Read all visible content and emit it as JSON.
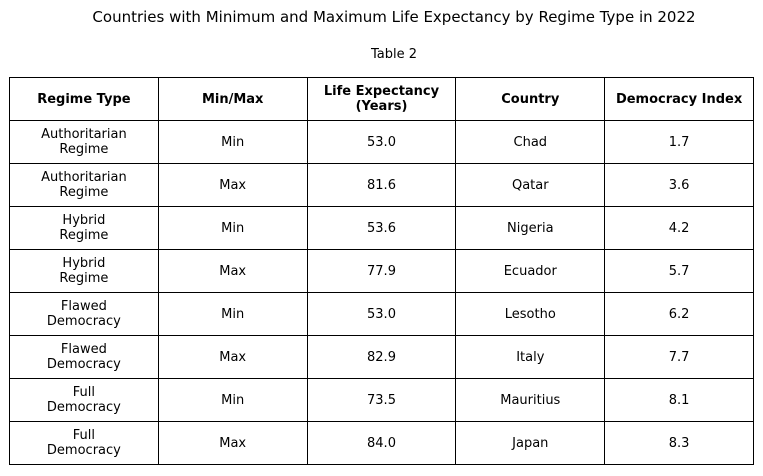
{
  "chart_data": {
    "type": "table",
    "title": "Countries with Minimum and Maximum Life Expectancy by Regime Type in 2022",
    "subtitle": "Table 2",
    "columns": [
      "Regime Type",
      "Min/Max",
      "Life Expectancy\n(Years)",
      "Country",
      "Democracy Index"
    ],
    "rows": [
      [
        "Authoritarian\nRegime",
        "Min",
        "53.0",
        "Chad",
        "1.7"
      ],
      [
        "Authoritarian\nRegime",
        "Max",
        "81.6",
        "Qatar",
        "3.6"
      ],
      [
        "Hybrid\nRegime",
        "Min",
        "53.6",
        "Nigeria",
        "4.2"
      ],
      [
        "Hybrid\nRegime",
        "Max",
        "77.9",
        "Ecuador",
        "5.7"
      ],
      [
        "Flawed\nDemocracy",
        "Min",
        "53.0",
        "Lesotho",
        "6.2"
      ],
      [
        "Flawed\nDemocracy",
        "Max",
        "82.9",
        "Italy",
        "7.7"
      ],
      [
        "Full\nDemocracy",
        "Min",
        "73.5",
        "Mauritius",
        "8.1"
      ],
      [
        "Full\nDemocracy",
        "Max",
        "84.0",
        "Japan",
        "8.3"
      ]
    ]
  }
}
